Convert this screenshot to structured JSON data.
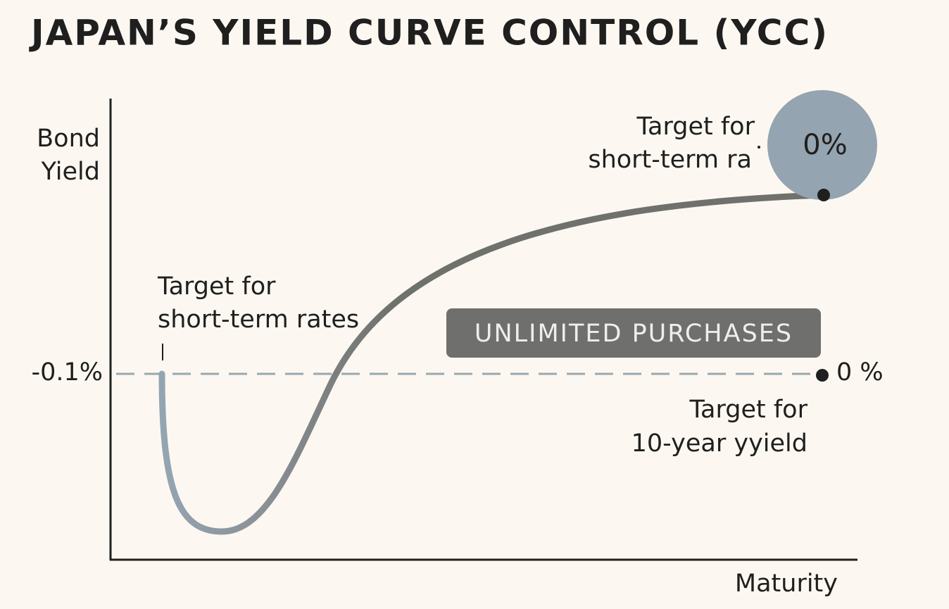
{
  "title": "JAPAN’S YIELD CURVE CONTROL (YCC)",
  "axes": {
    "y_label": [
      "Bond",
      "Yield"
    ],
    "x_label": "Maturity",
    "level_label": "-0.1%"
  },
  "annotations": {
    "short_term_left": [
      "Target for",
      "short-term rates"
    ],
    "short_term_right": [
      "Target for",
      "short-term ra"
    ],
    "badge": "0%",
    "purchases": "UNLIMITED PURCHASES",
    "end_label": "0 %",
    "ten_year": [
      "Target for",
      "10-year yyield"
    ]
  }
}
